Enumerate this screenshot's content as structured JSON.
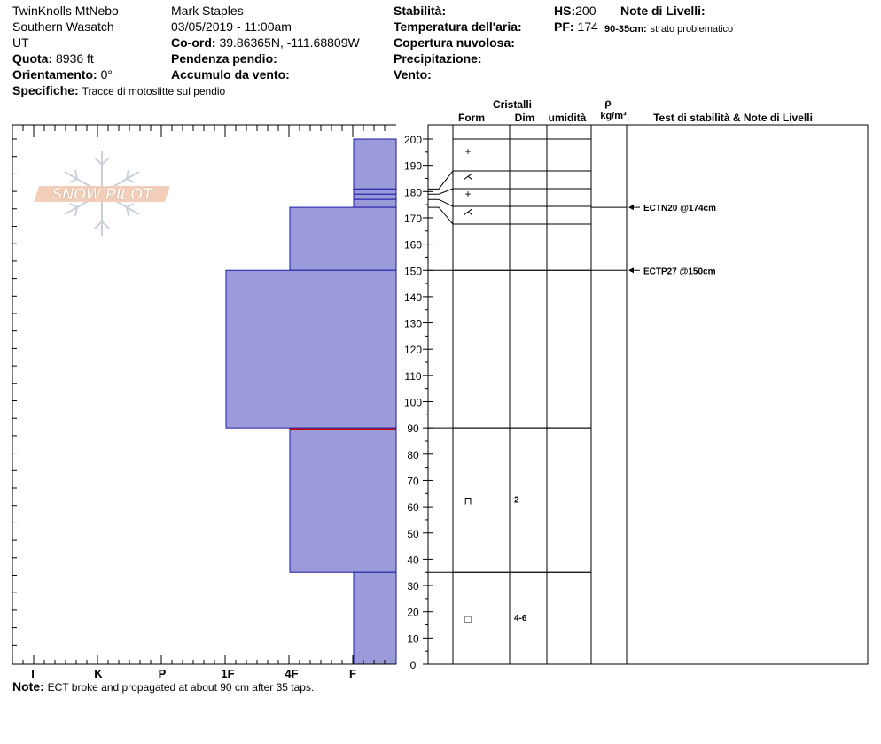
{
  "header": {
    "location": "TwinKnolls MtNebo",
    "range": "Southern Wasatch",
    "state": "UT",
    "elevation_label": "Quota:",
    "elevation_value": "8936 ft",
    "aspect_label": "Orientamento:",
    "aspect_value": "0°",
    "specifics_label": "Specifiche:",
    "specifics_value": "Tracce di motoslitte sul pendio",
    "observer": "Mark Staples",
    "datetime": "03/05/2019 - 11:00am",
    "coord_label": "Co-ord:",
    "coord_value": "39.86365N, -111.68809W",
    "slope_label": "Pendenza pendio:",
    "wind_loading_label": "Accumulo da vento:",
    "stability_label": "Stabilità:",
    "air_temp_label": "Temperatura dell'aria:",
    "sky_label": "Copertura nuvolosa:",
    "precip_label": "Precipitazione:",
    "wind_label": "Vento:",
    "hs_label": "HS:",
    "hs_value": "200",
    "pf_label": "PF:",
    "pf_value": "174",
    "layer_notes_label": "Note di Livelli:",
    "layer_note_range": "90-35cm:",
    "layer_note_text": "strato problematico"
  },
  "logo_text": "SNOW PILOT",
  "columns": {
    "crystals": "Cristalli",
    "form": "Form",
    "size": "Dim",
    "moisture": "umidità",
    "rho": "ρ",
    "density_unit": "kg/m³",
    "tests": "Test di stabilità & Note di Livelli"
  },
  "note": {
    "label": "Note:",
    "text": "ECT broke and propagated at about 90 cm after 35 taps."
  },
  "colors": {
    "hardness_fill": "#9b9bd9",
    "hardness_stroke": "#1a1aa6",
    "critical_line": "#cc0000"
  },
  "chart_data": {
    "type": "snow_profile",
    "y_axis": {
      "label": "",
      "unit": "cm",
      "range": [
        0,
        200
      ],
      "ticks": [
        0,
        10,
        20,
        30,
        40,
        50,
        60,
        70,
        80,
        90,
        100,
        110,
        120,
        130,
        140,
        150,
        160,
        170,
        180,
        190,
        200
      ]
    },
    "hardness_scale": [
      "I",
      "K",
      "P",
      "1F",
      "4F",
      "F"
    ],
    "hardness_layers": [
      {
        "top": 200,
        "bottom": 181,
        "hardness": "F"
      },
      {
        "top": 181,
        "bottom": 179,
        "hardness": "F"
      },
      {
        "top": 179,
        "bottom": 177,
        "hardness": "F"
      },
      {
        "top": 177,
        "bottom": 174,
        "hardness": "F"
      },
      {
        "top": 174,
        "bottom": 150,
        "hardness": "4F"
      },
      {
        "top": 150,
        "bottom": 90,
        "hardness": "1F"
      },
      {
        "top": 90,
        "bottom": 35,
        "hardness": "4F"
      },
      {
        "top": 35,
        "bottom": 0,
        "hardness": "F"
      }
    ],
    "critical_layer_cm": 90,
    "grain_layers": [
      {
        "top": 200,
        "bottom": 188,
        "form": "+",
        "size": ""
      },
      {
        "top": 188,
        "bottom": 181,
        "form": "⋌",
        "size": ""
      },
      {
        "top": 181,
        "bottom": 174,
        "form": "+",
        "size": ""
      },
      {
        "top": 174,
        "bottom": 168,
        "form": "⋌",
        "size": ""
      },
      {
        "top": 150,
        "bottom": 90,
        "form": "",
        "size": ""
      },
      {
        "top": 90,
        "bottom": 35,
        "form": "⊓",
        "size": "2"
      },
      {
        "top": 35,
        "bottom": 0,
        "form": "□",
        "size": "4-6"
      }
    ],
    "stability_tests": [
      {
        "depth_cm": 174,
        "label": "ECTN20 @174cm"
      },
      {
        "depth_cm": 150,
        "label": "ECTP27 @150cm"
      }
    ]
  }
}
